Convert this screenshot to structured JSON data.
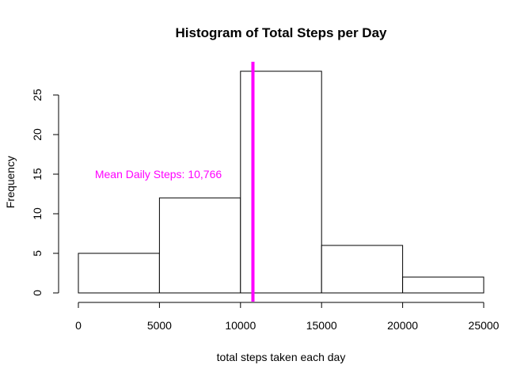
{
  "chart_data": {
    "type": "bar",
    "subtype": "histogram",
    "title": "Histogram of Total Steps per Day",
    "xlabel": "total steps taken each day",
    "ylabel": "Frequency",
    "bins": [
      {
        "from": 0,
        "to": 5000,
        "count": 5
      },
      {
        "from": 5000,
        "to": 10000,
        "count": 12
      },
      {
        "from": 10000,
        "to": 15000,
        "count": 28
      },
      {
        "from": 15000,
        "to": 20000,
        "count": 6
      },
      {
        "from": 20000,
        "to": 25000,
        "count": 2
      }
    ],
    "xlim": [
      0,
      25000
    ],
    "ylim": [
      0,
      29
    ],
    "x_ticks": [
      0,
      5000,
      10000,
      15000,
      20000,
      25000
    ],
    "y_ticks": [
      0,
      5,
      10,
      15,
      20,
      25
    ],
    "grid": false,
    "mean_line": {
      "x": 10766,
      "color": "#ff00ff",
      "label": "Mean Daily Steps: 10,766"
    },
    "bar_fill": "#ffffff",
    "bar_stroke": "#000000"
  }
}
